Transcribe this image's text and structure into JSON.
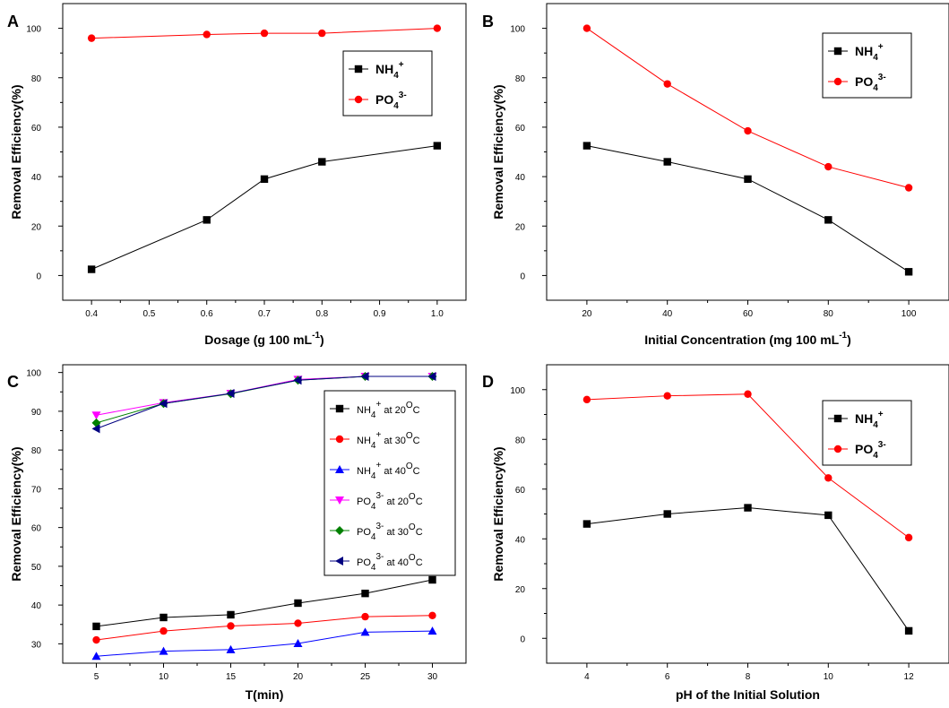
{
  "chart_data": [
    {
      "type": "line",
      "panel_label": "A",
      "xlabel": "Dosage (g 100 mL",
      "xlabel_sup": "-1",
      "xlabel_end": ")",
      "ylabel": "Removal Efficiency(%)",
      "xlim": [
        0.35,
        1.05
      ],
      "ylim": [
        -10,
        110
      ],
      "xticks": [
        0.4,
        0.5,
        0.6,
        0.7,
        0.8,
        0.9,
        1.0
      ],
      "xtick_labels": [
        "0.4",
        "0.5",
        "0.6",
        "0.7",
        "0.8",
        "0.9",
        "1.0"
      ],
      "yticks": [
        0,
        20,
        40,
        60,
        80,
        100
      ],
      "series": [
        {
          "name": "NH4+",
          "label_main": "NH",
          "label_sub": "4",
          "label_sup": "+",
          "color": "#000000",
          "marker": "square",
          "x": [
            0.4,
            0.6,
            0.7,
            0.8,
            1.0
          ],
          "values": [
            2.5,
            22.5,
            39,
            46,
            52.5
          ]
        },
        {
          "name": "PO43-",
          "label_main": "PO",
          "label_sub": "4",
          "label_sup": "3-",
          "color": "#ff0000",
          "marker": "circle",
          "x": [
            0.4,
            0.6,
            0.7,
            0.8,
            1.0
          ],
          "values": [
            96,
            97.5,
            98,
            98,
            100
          ]
        }
      ]
    },
    {
      "type": "line",
      "panel_label": "B",
      "xlabel": "Initial Concentration (mg 100 mL",
      "xlabel_sup": "-1",
      "xlabel_end": ")",
      "ylabel": "Removal Efficiency(%)",
      "xlim": [
        10,
        110
      ],
      "ylim": [
        -10,
        110
      ],
      "xticks": [
        20,
        40,
        60,
        80,
        100
      ],
      "xtick_labels": [
        "20",
        "40",
        "60",
        "80",
        "100"
      ],
      "yticks": [
        0,
        20,
        40,
        60,
        80,
        100
      ],
      "series": [
        {
          "name": "NH4+",
          "label_main": "NH",
          "label_sub": "4",
          "label_sup": "+",
          "color": "#000000",
          "marker": "square",
          "x": [
            20,
            40,
            60,
            80,
            100
          ],
          "values": [
            52.5,
            46,
            39,
            22.5,
            1.5
          ]
        },
        {
          "name": "PO43-",
          "label_main": "PO",
          "label_sub": "4",
          "label_sup": "3-",
          "color": "#ff0000",
          "marker": "circle",
          "x": [
            20,
            40,
            60,
            80,
            100
          ],
          "values": [
            100,
            77.5,
            58.5,
            44,
            35.5
          ]
        }
      ]
    },
    {
      "type": "line",
      "panel_label": "C",
      "xlabel": "T(min)",
      "xlabel_sup": "",
      "xlabel_end": "",
      "ylabel": "Removal Efficiency(%)",
      "xlim": [
        2.5,
        32.5
      ],
      "ylim": [
        25,
        102
      ],
      "xticks": [
        5,
        10,
        15,
        20,
        25,
        30
      ],
      "xtick_labels": [
        "5",
        "10",
        "15",
        "20",
        "25",
        "30"
      ],
      "yticks": [
        30,
        40,
        50,
        60,
        70,
        80,
        90,
        100
      ],
      "series": [
        {
          "name": "NH4+ at 20oC",
          "label_main": "NH",
          "label_sub": "4",
          "label_sup": "+",
          "label_tail": " at 20",
          "label_deg": "O",
          "label_end": "C",
          "color": "#000000",
          "marker": "square",
          "x": [
            5,
            10,
            15,
            20,
            25,
            30
          ],
          "values": [
            34.5,
            36.8,
            37.5,
            40.5,
            43,
            46.5
          ]
        },
        {
          "name": "NH4+ at 30oC",
          "label_main": "NH",
          "label_sub": "4",
          "label_sup": "+",
          "label_tail": " at 30",
          "label_deg": "O",
          "label_end": "C",
          "color": "#ff0000",
          "marker": "circle",
          "x": [
            5,
            10,
            15,
            20,
            25,
            30
          ],
          "values": [
            31,
            33.3,
            34.6,
            35.3,
            37,
            37.3
          ]
        },
        {
          "name": "NH4+ at 40oC",
          "label_main": "NH",
          "label_sub": "4",
          "label_sup": "+",
          "label_tail": " at 40",
          "label_deg": "O",
          "label_end": "C",
          "color": "#0000ff",
          "marker": "triangle-up",
          "x": [
            5,
            10,
            15,
            20,
            25,
            30
          ],
          "values": [
            26.8,
            28.1,
            28.5,
            30.1,
            33,
            33.3
          ]
        },
        {
          "name": "PO43- at 20oC",
          "label_main": "PO",
          "label_sub": "4",
          "label_sup": "3-",
          "label_tail": " at 20",
          "label_deg": "O",
          "label_end": "C",
          "color": "#ff00ff",
          "marker": "triangle-down",
          "x": [
            5,
            10,
            15,
            20,
            25,
            30
          ],
          "values": [
            89,
            92.2,
            94.6,
            98.2,
            99,
            99
          ]
        },
        {
          "name": "PO43- at 30oC",
          "label_main": "PO",
          "label_sub": "4",
          "label_sup": "3-",
          "label_tail": " at 30",
          "label_deg": "O",
          "label_end": "C",
          "color": "#008000",
          "marker": "diamond",
          "x": [
            5,
            10,
            15,
            20,
            25,
            30
          ],
          "values": [
            87,
            92,
            94.5,
            98,
            99,
            99
          ]
        },
        {
          "name": "PO43- at 40oC",
          "label_main": "PO",
          "label_sub": "4",
          "label_sup": "3-",
          "label_tail": " at 40",
          "label_deg": "O",
          "label_end": "C",
          "color": "#000080",
          "marker": "triangle-left",
          "x": [
            5,
            10,
            15,
            20,
            25,
            30
          ],
          "values": [
            85.5,
            92,
            94.6,
            98,
            99,
            99
          ]
        }
      ]
    },
    {
      "type": "line",
      "panel_label": "D",
      "xlabel": "pH of the Initial Solution",
      "xlabel_sup": "",
      "xlabel_end": "",
      "ylabel": "Removal Efficiency(%)",
      "xlim": [
        3,
        13
      ],
      "ylim": [
        -10,
        110
      ],
      "xticks": [
        4,
        6,
        8,
        10,
        12
      ],
      "xtick_labels": [
        "4",
        "6",
        "8",
        "10",
        "12"
      ],
      "yticks": [
        0,
        20,
        40,
        60,
        80,
        100
      ],
      "series": [
        {
          "name": "NH4+",
          "label_main": "NH",
          "label_sub": "4",
          "label_sup": "+",
          "color": "#000000",
          "marker": "square",
          "x": [
            4,
            6,
            8,
            10,
            12
          ],
          "values": [
            46,
            50,
            52.5,
            49.5,
            3
          ]
        },
        {
          "name": "PO43-",
          "label_main": "PO",
          "label_sub": "4",
          "label_sup": "3-",
          "color": "#ff0000",
          "marker": "circle",
          "x": [
            4,
            6,
            8,
            10,
            12
          ],
          "values": [
            96,
            97.5,
            98.2,
            64.5,
            40.5
          ]
        }
      ]
    }
  ]
}
